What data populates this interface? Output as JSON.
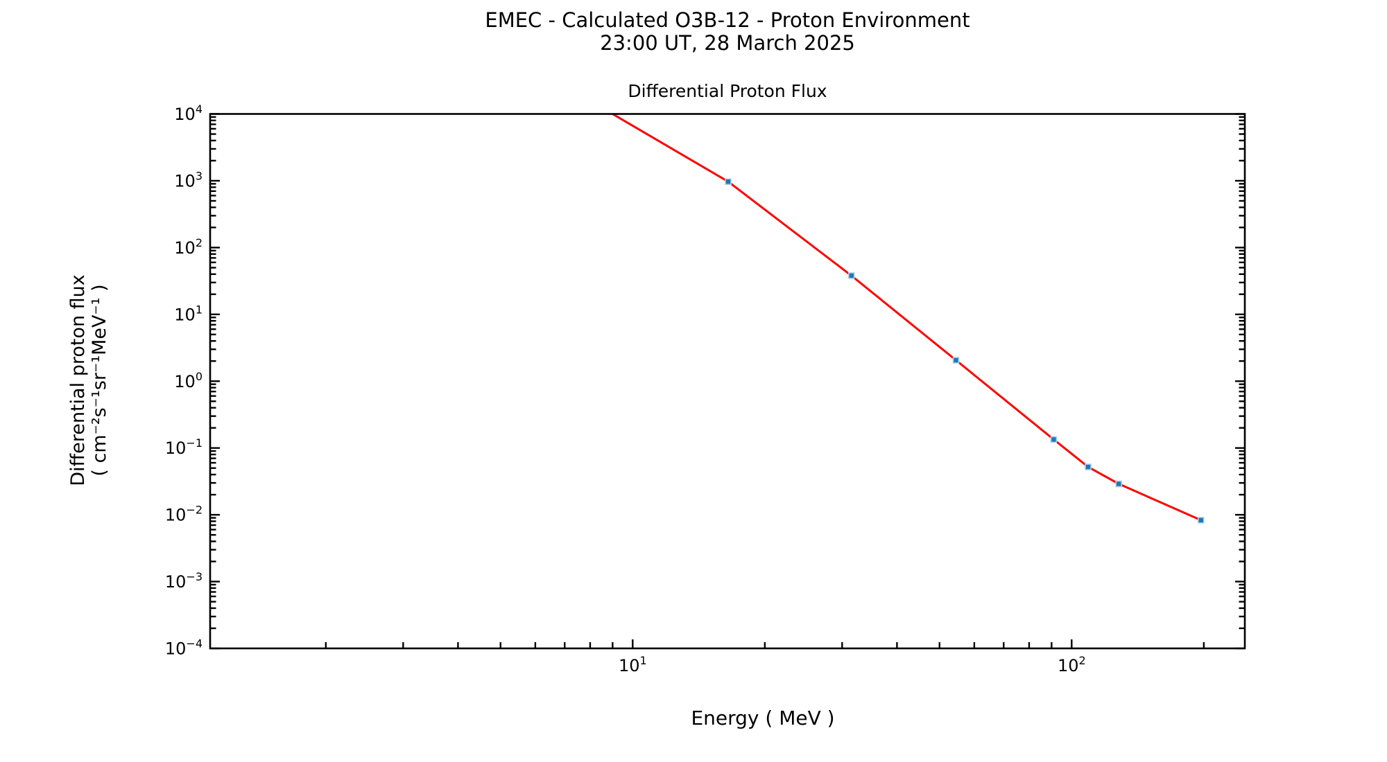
{
  "figure": {
    "title_line1": "EMEC - Calculated O3B-12 - Proton Environment",
    "title_line2": "23:00 UT, 28 March 2025",
    "axes_title": "Differential Proton Flux",
    "xlabel": "Energy ( MeV )",
    "ylabel_line1": "Differential proton flux",
    "ylabel_line2": "( cm⁻²s⁻¹sr⁻¹MeV⁻¹ )"
  },
  "chart_data": {
    "type": "line",
    "title": "Differential Proton Flux",
    "xlabel": "Energy ( MeV )",
    "ylabel": "Differential proton flux ( cm^-2 s^-1 sr^-1 MeV^-1 )",
    "x_scale": "log",
    "y_scale": "log",
    "xlim": [
      1.09,
      248
    ],
    "ylim": [
      0.0001,
      10000
    ],
    "x_major_tick_exponents": [
      1,
      2
    ],
    "y_major_tick_exponents": [
      4,
      3,
      2,
      1,
      0,
      -1,
      -2,
      -3,
      -4
    ],
    "grid": false,
    "legend": false,
    "series": [
      {
        "name": "Differential proton flux",
        "line_color": "#ff0000",
        "line_width": 3,
        "marker": "square",
        "marker_color": "#1f77b4",
        "marker_edge_color": "#add0ea",
        "clip_entry_point": {
          "x": 9.0,
          "y": 10000
        },
        "points": [
          {
            "x": 16.5,
            "y": 970
          },
          {
            "x": 31.5,
            "y": 38
          },
          {
            "x": 54.5,
            "y": 2.06
          },
          {
            "x": 91,
            "y": 0.134
          },
          {
            "x": 109,
            "y": 0.052
          },
          {
            "x": 128,
            "y": 0.029
          },
          {
            "x": 197,
            "y": 0.0083
          }
        ]
      }
    ]
  }
}
